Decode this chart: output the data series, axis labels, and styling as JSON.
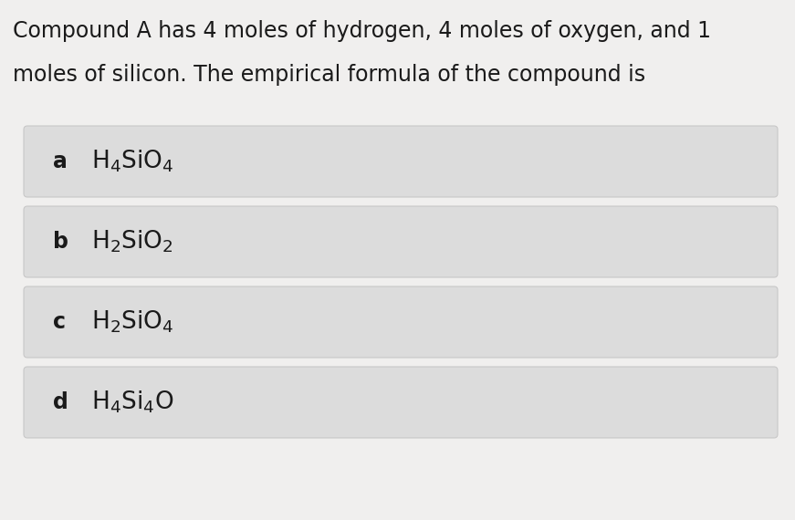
{
  "background_color": "#f0efee",
  "question_text_line1": "Compound A has 4 moles of hydrogen, 4 moles of oxygen, and 1",
  "question_text_line2": "moles of silicon. The empirical formula of the compound is",
  "options": [
    {
      "label": "a",
      "formula": "H$_4$SiO$_4$"
    },
    {
      "label": "b",
      "formula": "H$_2$SiO$_2$"
    },
    {
      "label": "c",
      "formula": "H$_2$SiO$_4$"
    },
    {
      "label": "d",
      "formula": "H$_4$Si$_4$O"
    }
  ],
  "option_box_color": "#dcdcdc",
  "option_box_edge_color": "#c8c8c8",
  "text_color": "#1a1a1a",
  "question_fontsize": 17.0,
  "option_label_fontsize": 17,
  "option_formula_fontsize": 19,
  "label_fontweight": "bold"
}
